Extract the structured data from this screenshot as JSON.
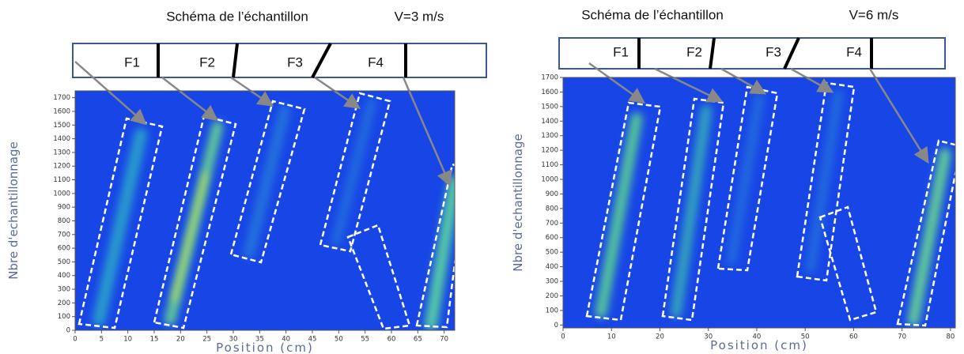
{
  "chart_data": [
    {
      "type": "heatmap",
      "title": "Schéma de l’échantillon",
      "annotations": [
        "V=3 m/s",
        "F1",
        "F2",
        "F3",
        "F4"
      ],
      "x_label": "Position (cm)",
      "y_label": "Nbre d'echantillonnage",
      "xlim": [
        0,
        72
      ],
      "ylim": [
        0,
        1750
      ],
      "xticks": [
        0,
        5,
        10,
        15,
        20,
        25,
        30,
        35,
        40,
        45,
        50,
        55,
        60,
        65,
        70
      ],
      "yticks": [
        0,
        100,
        200,
        300,
        400,
        500,
        600,
        700,
        800,
        900,
        1000,
        1100,
        1200,
        1300,
        1400,
        1500,
        1600,
        1700
      ]
    },
    {
      "type": "heatmap",
      "title": "Schéma de l’échantillon",
      "annotations": [
        "V=6 m/s",
        "F1",
        "F2",
        "F3",
        "F4"
      ],
      "x_label": "Position (cm)",
      "y_label": "Nbre d'echantillonnage",
      "xlim": [
        0,
        81
      ],
      "ylim": [
        -20,
        1700
      ],
      "xticks": [
        0,
        10,
        20,
        30,
        40,
        50,
        60,
        70,
        80
      ],
      "yticks": [
        0,
        100,
        200,
        300,
        400,
        500,
        600,
        700,
        800,
        900,
        1000,
        1100,
        1200,
        1300,
        1400,
        1500,
        1600,
        1700
      ]
    }
  ]
}
